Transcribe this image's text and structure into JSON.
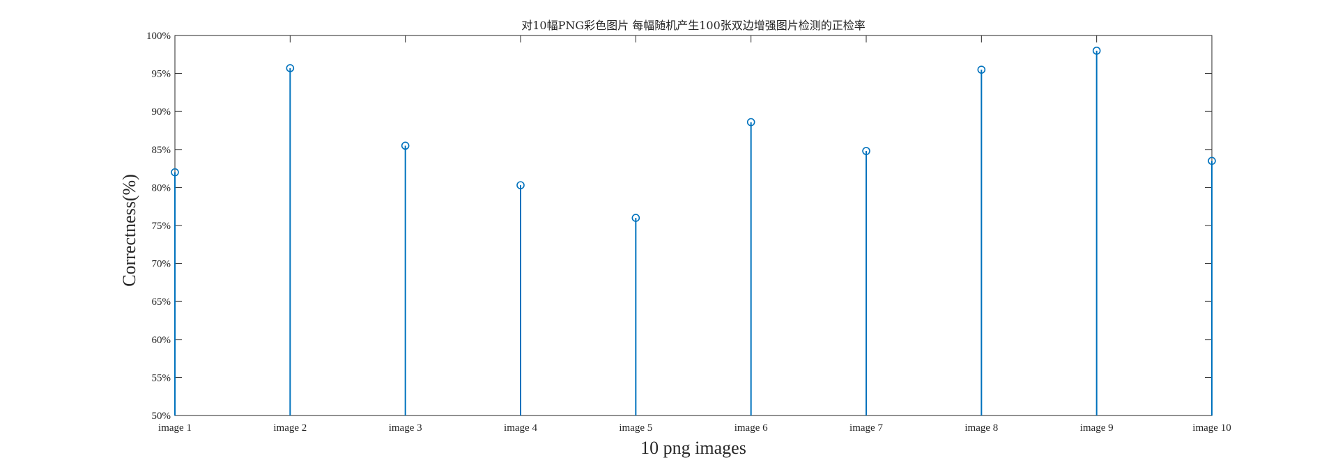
{
  "chart_data": {
    "type": "stem",
    "title": "对10幅PNG彩色图片 每幅随机产生100张双边增强图片检测的正检率",
    "xlabel": "10 png images",
    "ylabel": "Correctness(%)",
    "categories": [
      "image 1",
      "image 2",
      "image 3",
      "image 4",
      "image 5",
      "image 6",
      "image 7",
      "image 8",
      "image 9",
      "image 10"
    ],
    "values": [
      82,
      95.7,
      85.5,
      80.3,
      76,
      88.6,
      84.8,
      95.5,
      98,
      83.5
    ],
    "ylim": [
      50,
      100
    ],
    "yticks": [
      50,
      55,
      60,
      65,
      70,
      75,
      80,
      85,
      90,
      95,
      100
    ],
    "ytick_labels": [
      "50%",
      "55%",
      "60%",
      "65%",
      "70%",
      "75%",
      "80%",
      "85%",
      "90%",
      "95%",
      "100%"
    ],
    "grid": false,
    "color": "#0072BD"
  }
}
